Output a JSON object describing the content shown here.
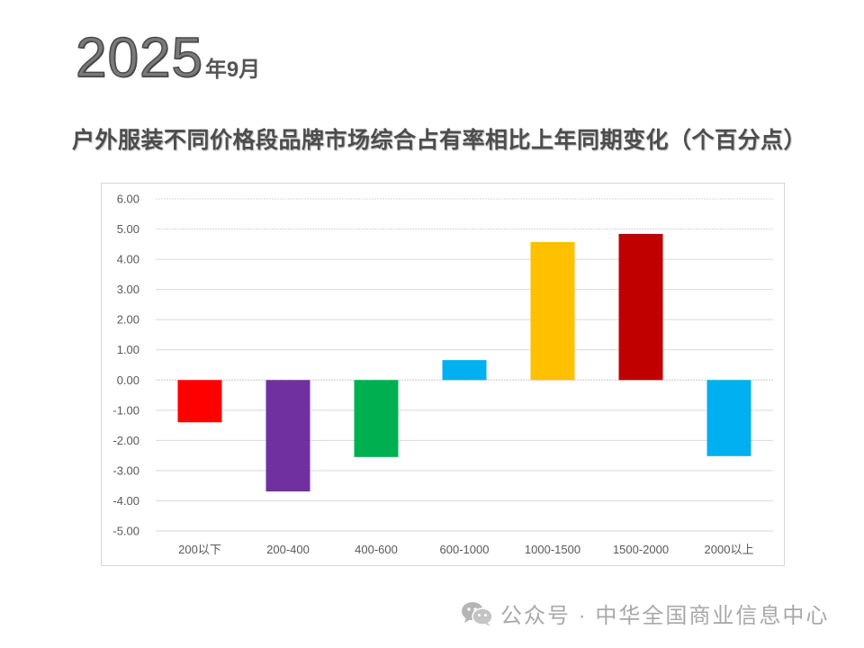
{
  "header": {
    "year": "2025",
    "year_suffix": "年9月",
    "title": "户外服装不同价格段品牌市场综合占有率相比上年同期变化（个百分点）"
  },
  "watermark": {
    "icon": "wechat-icon",
    "text": "公众号 · 中华全国商业信息中心"
  },
  "chart_data": {
    "type": "bar",
    "title": "户外服装不同价格段品牌市场综合占有率相比上年同期变化（个百分点）",
    "xlabel": "",
    "ylabel": "",
    "categories": [
      "200以下",
      "200-400",
      "400-600",
      "600-1000",
      "1000-1500",
      "1500-2000",
      "2000以上"
    ],
    "values": [
      -1.4,
      -3.69,
      -2.55,
      0.66,
      4.57,
      4.84,
      -2.52
    ],
    "colors": [
      "#FF0000",
      "#7030A0",
      "#00B050",
      "#00B0F0",
      "#FFC000",
      "#C00000",
      "#00B0F0"
    ],
    "ylim": [
      -5,
      6
    ],
    "yticks": [
      "6.00",
      "5.00",
      "4.00",
      "3.00",
      "2.00",
      "1.00",
      "0.00",
      "-1.00",
      "-2.00",
      "-3.00",
      "-4.00",
      "-5.00"
    ],
    "grid": true,
    "legend": "none"
  }
}
